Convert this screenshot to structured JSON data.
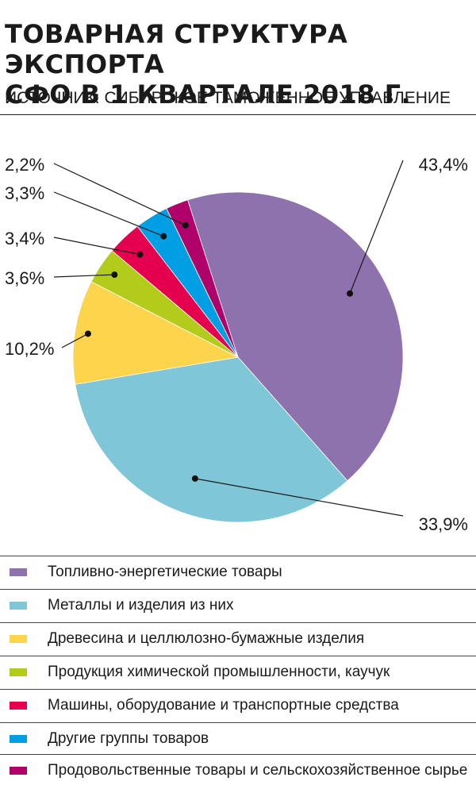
{
  "title_line1": "ТОВАРНАЯ СТРУКТУРА ЭКСПОРТА",
  "title_line2": "СФО В 1 КВАРТАЛЕ 2018 Г.",
  "source": "ИСТОЧНИК: СИБИРСКОЕ ТАМОЖЕННОЕ УПРАВЛЕНИЕ",
  "chart_data": {
    "type": "pie",
    "title": "ТОВАРНАЯ СТРУКТУРА ЭКСПОРТА СФО В 1 КВАРТАЛЕ 2018 Г.",
    "unit": "%",
    "slices": [
      {
        "name": "Топливно-энергетические товары",
        "value": 43.4,
        "label": "43,4%",
        "color": "#8e72ae"
      },
      {
        "name": "Металлы и изделия из  них",
        "value": 33.9,
        "label": "33,9%",
        "color": "#7fc6d9"
      },
      {
        "name": "Древесина и целлюлозно-бумажные изделия",
        "value": 10.2,
        "label": "10,2%",
        "color": "#fcd54d"
      },
      {
        "name": "Продукция химической промышленности, каучук",
        "value": 3.6,
        "label": "3,6%",
        "color": "#b3cc1b"
      },
      {
        "name": "Машины, оборудование и транспортные средства",
        "value": 3.4,
        "label": "3,4%",
        "color": "#e5004f"
      },
      {
        "name": "Другие группы товаров",
        "value": 3.3,
        "label": "3,3%",
        "color": "#009fe3"
      },
      {
        "name": "Продовольственные товары и сельскохозяйственное сырье",
        "value": 2.2,
        "label": "2,2%",
        "color": "#b0006a"
      }
    ],
    "legend_position": "bottom"
  },
  "legend": [
    {
      "label": "Топливно-энергетические товары",
      "color": "#8e72ae"
    },
    {
      "label": "Металлы и изделия из  них",
      "color": "#7fc6d9"
    },
    {
      "label": "Древесина и целлюлозно-бумажные изделия",
      "color": "#fcd54d"
    },
    {
      "label": "Продукция химической промышленности, каучук",
      "color": "#b3cc1b"
    },
    {
      "label": "Машины, оборудование и транспортные средства",
      "color": "#e5004f"
    },
    {
      "label": "Другие группы товаров",
      "color": "#009fe3"
    },
    {
      "label": "Продовольственные товары и сельскохозяйственное сырье",
      "color": "#b0006a"
    }
  ]
}
